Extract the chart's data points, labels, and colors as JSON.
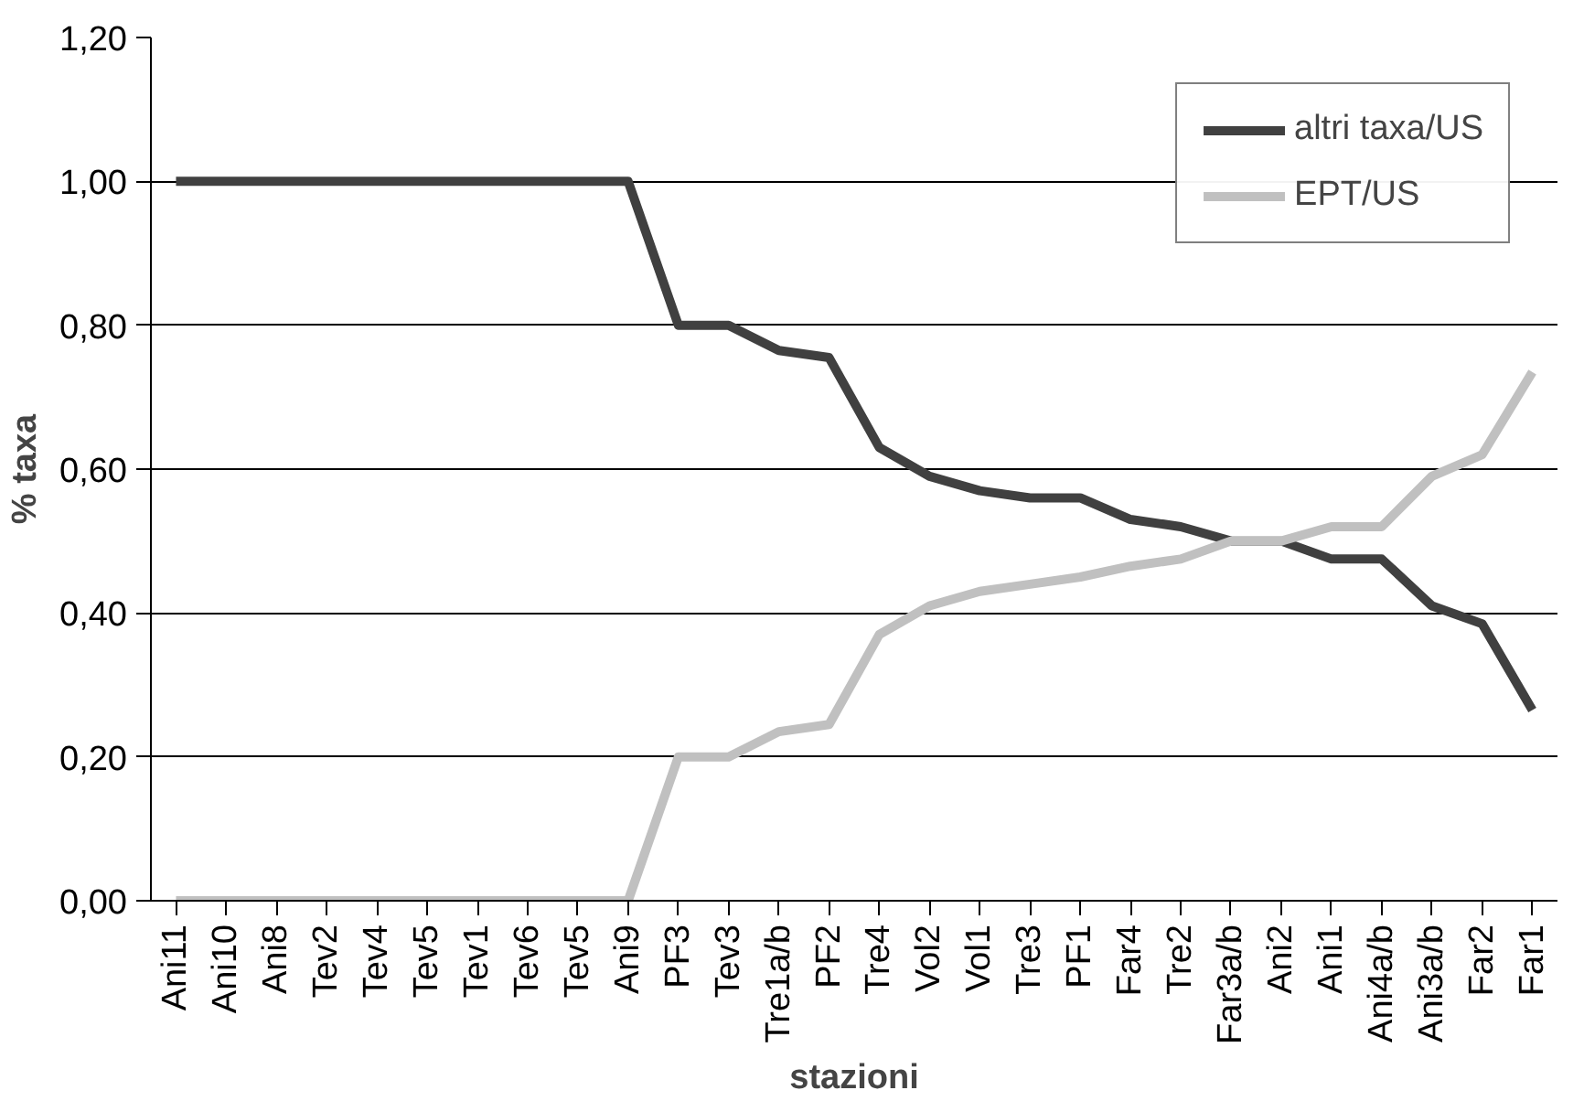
{
  "chart_data": {
    "type": "line",
    "xlabel": "stazioni",
    "ylabel": "% taxa",
    "categories": [
      "Ani11",
      "Ani10",
      "Ani8",
      "Tev2",
      "Tev4",
      "Tev5",
      "Tev1",
      "Tev6",
      "Tev5",
      "Ani9",
      "PF3",
      "Tev3",
      "Tre1a/b",
      "PF2",
      "Tre4",
      "Vol2",
      "Vol1",
      "Tre3",
      "PF1",
      "Far4",
      "Tre2",
      "Far3a/b",
      "Ani2",
      "Ani1",
      "Ani4a/b",
      "Ani3a/b",
      "Far2",
      "Far1"
    ],
    "series": [
      {
        "name": "altri taxa/US",
        "color": "#404040",
        "values": [
          1,
          1,
          1,
          1,
          1,
          1,
          1,
          1,
          1,
          1,
          0.8,
          0.8,
          0.765,
          0.755,
          0.63,
          0.59,
          0.57,
          0.56,
          0.56,
          0.53,
          0.52,
          0.5,
          0.5,
          0.475,
          0.475,
          0.41,
          0.385,
          0.265
        ]
      },
      {
        "name": "EPT/US",
        "color": "#c0c0c0",
        "values": [
          0,
          0,
          0,
          0,
          0,
          0,
          0,
          0,
          0,
          0,
          0.2,
          0.2,
          0.235,
          0.245,
          0.37,
          0.41,
          0.43,
          0.44,
          0.45,
          0.465,
          0.475,
          0.5,
          0.5,
          0.52,
          0.52,
          0.59,
          0.62,
          0.735
        ]
      }
    ],
    "ylim": [
      0,
      1.2
    ],
    "yticks": [
      {
        "value": 0,
        "label": "0,00"
      },
      {
        "value": 0.2,
        "label": "0,20"
      },
      {
        "value": 0.4,
        "label": "0,40"
      },
      {
        "value": 0.6,
        "label": "0,60"
      },
      {
        "value": 0.8,
        "label": "0,80"
      },
      {
        "value": 1.0,
        "label": "1,00"
      },
      {
        "value": 1.2,
        "label": "1,20"
      }
    ],
    "grid": "y",
    "legend": "top right",
    "marker": "none",
    "line_style": "solid"
  }
}
